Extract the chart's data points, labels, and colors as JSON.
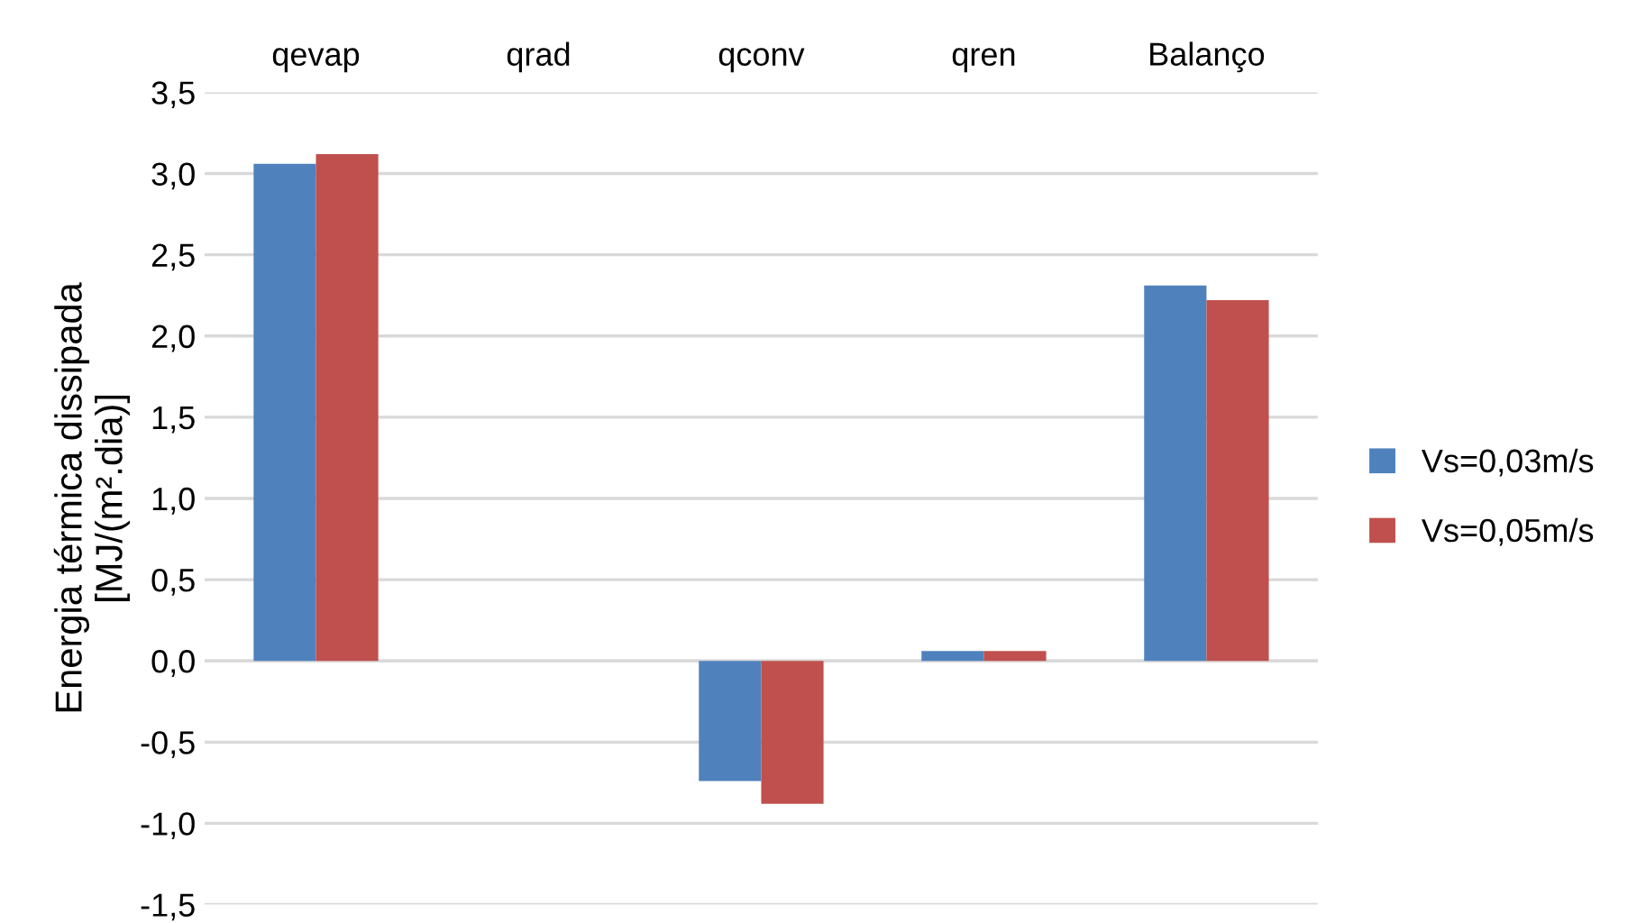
{
  "chart_data": {
    "type": "bar",
    "ylabel": "Energia térmica dissipada\n[MJ/(m².dia)]",
    "categories": [
      "qevap",
      "qrad",
      "qconv",
      "qren",
      "Balanço"
    ],
    "series": [
      {
        "name": "Vs=0,03m/s",
        "color": "#4f81bd",
        "values": [
          3.06,
          0,
          -0.74,
          0.06,
          2.31
        ]
      },
      {
        "name": "Vs=0,05m/s",
        "color": "#c0504d",
        "values": [
          3.12,
          0,
          -0.88,
          0.06,
          2.22
        ]
      }
    ],
    "ylim": [
      -1.5,
      3.5
    ],
    "yticks": [
      {
        "value": -1.5,
        "label": "-1,5"
      },
      {
        "value": -1.0,
        "label": "-1,0"
      },
      {
        "value": -0.5,
        "label": "-0,5"
      },
      {
        "value": 0,
        "label": "0,0"
      },
      {
        "value": 0.5,
        "label": "0,5"
      },
      {
        "value": 1.0,
        "label": "1,0"
      },
      {
        "value": 1.5,
        "label": "1,5"
      },
      {
        "value": 2.0,
        "label": "2,0"
      },
      {
        "value": 2.5,
        "label": "2,5"
      },
      {
        "value": 3.0,
        "label": "3,0"
      },
      {
        "value": 3.5,
        "label": "3,5"
      }
    ],
    "grid": "y",
    "legend": "right"
  }
}
